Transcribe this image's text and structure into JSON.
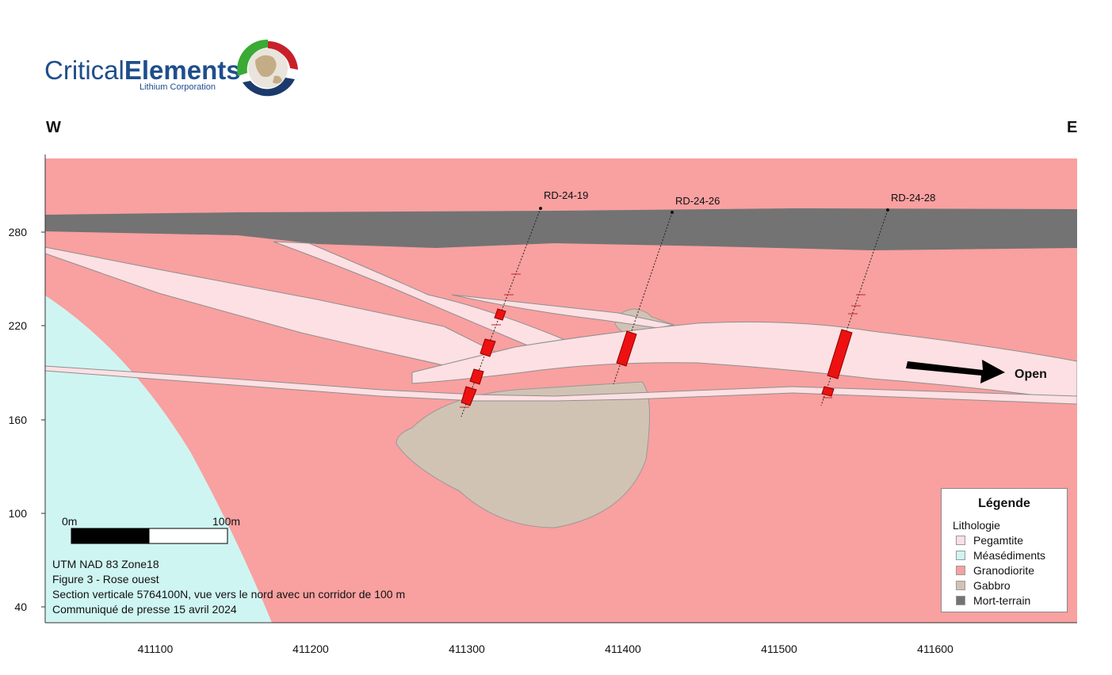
{
  "logo": {
    "brand_part1": "Critical",
    "brand_part2": "Elements",
    "tagline": "Lithium Corporation"
  },
  "directions": {
    "west": "W",
    "east": "E"
  },
  "axes": {
    "x_ticks": [
      "411100",
      "411200",
      "411300",
      "411400",
      "411500",
      "411600"
    ],
    "y_ticks": [
      "280",
      "220",
      "160",
      "100",
      "40"
    ]
  },
  "drillholes": [
    "RD-24-19",
    "RD-24-26",
    "RD-24-28"
  ],
  "annotation": {
    "open_label": "Open"
  },
  "scale_bar": {
    "start_label": "0m",
    "end_label": "100m"
  },
  "info": {
    "line1": "UTM NAD 83 Zone18",
    "line2": "Figure 3 - Rose ouest",
    "line3": "Section verticale 5764100N, vue vers le nord avec un corridor de 100 m",
    "line4": "Communiqué de presse 15 avril 2024"
  },
  "legend": {
    "title": "Légende",
    "subtitle": "Lithologie",
    "items": [
      {
        "label": "Pegamtite",
        "color": "#fde0e3"
      },
      {
        "label": "Méasédiments",
        "color": "#cff5f2"
      },
      {
        "label": "Granodiorite",
        "color": "#f9a0a0"
      },
      {
        "label": "Gabbro",
        "color": "#d1c3b4"
      },
      {
        "label": "Mort-terrain",
        "color": "#737373"
      }
    ]
  },
  "colors": {
    "granodiorite": "#f9a0a0",
    "metasediments": "#cff5f2",
    "pegmatite": "#fde0e3",
    "gabbro": "#d1c3b4",
    "overburden": "#737373",
    "intercept": "#ee1111",
    "brand_blue": "#1f4e8c",
    "brand_green": "#3aaa35",
    "brand_red": "#c8202a",
    "brand_navy": "#1b3a6b"
  }
}
